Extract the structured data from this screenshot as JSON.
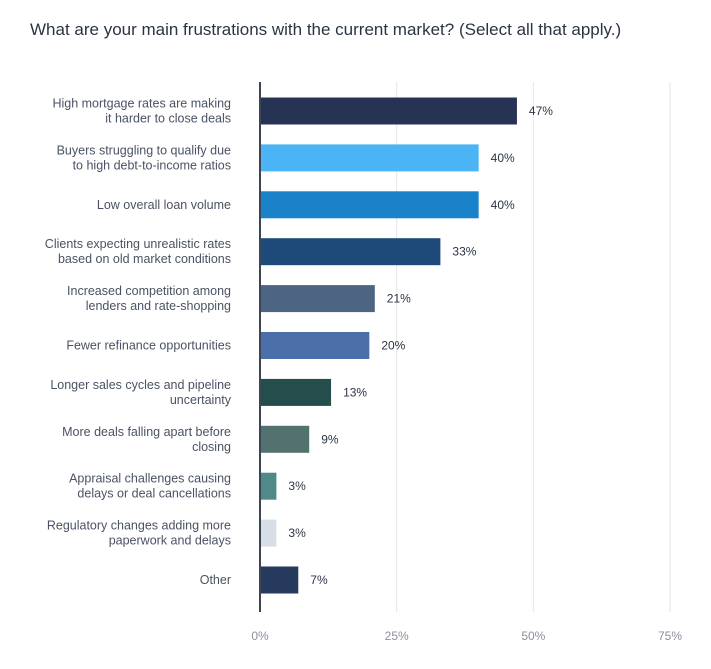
{
  "chart_data": {
    "type": "bar",
    "orientation": "horizontal",
    "title": "What are your main frustrations with the current market? (Select all that apply.)",
    "categories": [
      [
        "High mortgage rates are making",
        "it harder to close deals"
      ],
      [
        "Buyers struggling to qualify due",
        "to high debt-to-income ratios"
      ],
      [
        "Low overall loan volume"
      ],
      [
        "Clients expecting unrealistic rates",
        "based on old market conditions"
      ],
      [
        "Increased competition among",
        "lenders and rate-shopping"
      ],
      [
        "Fewer refinance opportunities"
      ],
      [
        "Longer sales cycles and pipeline",
        "uncertainty"
      ],
      [
        "More deals falling apart before",
        "closing"
      ],
      [
        "Appraisal challenges causing",
        "delays or deal cancellations"
      ],
      [
        "Regulatory changes adding more",
        "paperwork and delays"
      ],
      [
        "Other"
      ]
    ],
    "values": [
      47,
      40,
      40,
      33,
      21,
      20,
      13,
      9,
      3,
      3,
      7
    ],
    "value_labels": [
      "47%",
      "40%",
      "40%",
      "33%",
      "21%",
      "20%",
      "13%",
      "9%",
      "3%",
      "3%",
      "7%"
    ],
    "bar_colors": [
      "#263354",
      "#4ab4f5",
      "#1a82c9",
      "#1d4a78",
      "#4d6482",
      "#4b70a9",
      "#244d4c",
      "#53716f",
      "#4f8a88",
      "#d8dee6",
      "#253a5c"
    ],
    "xlim": [
      0,
      75
    ],
    "xticks": [
      0,
      25,
      50,
      75
    ],
    "xtick_labels": [
      "0%",
      "25%",
      "50%",
      "75%"
    ],
    "grid": true,
    "legend": "none"
  }
}
